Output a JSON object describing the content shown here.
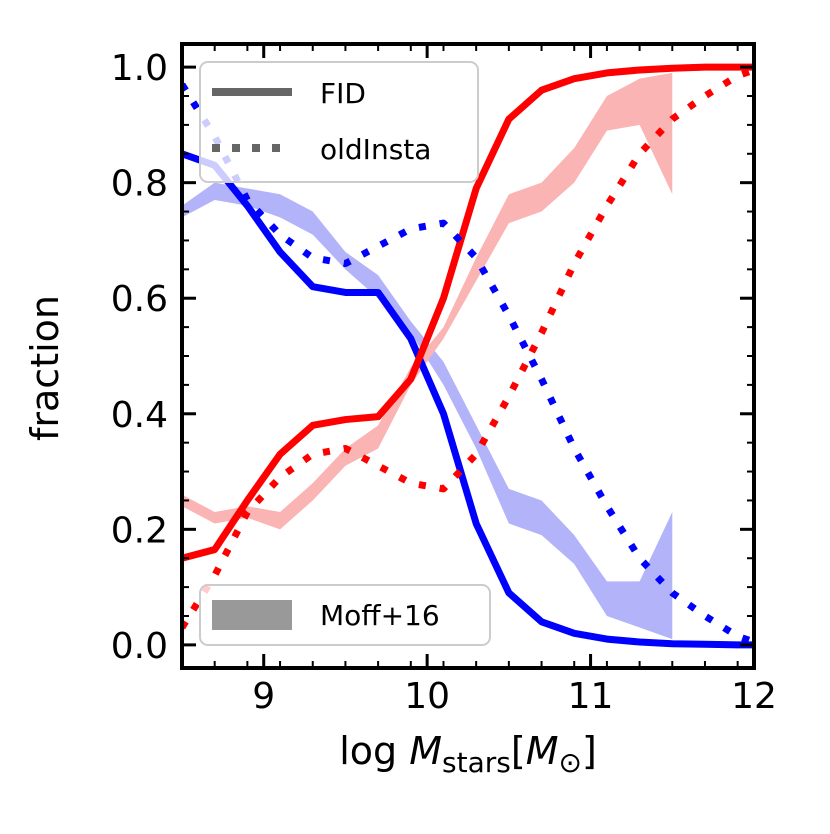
{
  "chart_data": {
    "type": "line",
    "xlabel": "log M_stars[M_⊙]",
    "xlabel_parts": {
      "prefix": "log ",
      "var": "M",
      "sub": "stars",
      "bracket_open": "[",
      "unit_var": "M",
      "unit_sub": "⊙",
      "bracket_close": "]"
    },
    "ylabel": "fraction",
    "xlim": [
      8.5,
      12.0
    ],
    "ylim": [
      -0.04,
      1.04
    ],
    "xticks": [
      9,
      10,
      11,
      12
    ],
    "xtick_labels": [
      "9",
      "10",
      "11",
      "12"
    ],
    "yticks": [
      0.0,
      0.2,
      0.4,
      0.6,
      0.8,
      1.0
    ],
    "ytick_labels": [
      "0.0",
      "0.2",
      "0.4",
      "0.6",
      "0.8",
      "1.0"
    ],
    "colors": {
      "blue": "#0000ff",
      "red": "#ff0000",
      "blue_band": "#b3b3fa",
      "red_band": "#fbb4b4",
      "legend_gray": "#666666",
      "legend_band": "#999999"
    },
    "legend": [
      {
        "label": "FID",
        "style": "solid"
      },
      {
        "label": "oldInsta",
        "style": "dotted"
      },
      {
        "label": "Moff+16",
        "style": "band"
      }
    ],
    "series": [
      {
        "name": "FID blue",
        "style": "solid",
        "color": "#0000ff",
        "x": [
          8.5,
          8.7,
          8.9,
          9.1,
          9.3,
          9.5,
          9.7,
          9.9,
          10.1,
          10.3,
          10.5,
          10.7,
          10.9,
          11.1,
          11.3,
          11.5,
          11.7,
          11.9,
          12.0
        ],
        "y": [
          0.85,
          0.83,
          0.76,
          0.68,
          0.62,
          0.61,
          0.61,
          0.53,
          0.4,
          0.21,
          0.09,
          0.04,
          0.02,
          0.01,
          0.005,
          0.002,
          0.001,
          0.0,
          0.0
        ]
      },
      {
        "name": "FID red",
        "style": "solid",
        "color": "#ff0000",
        "x": [
          8.5,
          8.7,
          8.9,
          9.1,
          9.3,
          9.5,
          9.7,
          9.9,
          10.1,
          10.3,
          10.5,
          10.7,
          10.9,
          11.1,
          11.3,
          11.5,
          11.7,
          11.9,
          12.0
        ],
        "y": [
          0.15,
          0.165,
          0.25,
          0.33,
          0.38,
          0.39,
          0.395,
          0.46,
          0.6,
          0.79,
          0.91,
          0.96,
          0.98,
          0.99,
          0.995,
          0.998,
          1.0,
          1.0,
          1.0
        ]
      },
      {
        "name": "oldInsta blue",
        "style": "dotted",
        "color": "#0000ff",
        "x": [
          8.5,
          8.7,
          8.9,
          9.1,
          9.3,
          9.5,
          9.7,
          9.9,
          10.1,
          10.3,
          10.5,
          10.7,
          10.9,
          11.1,
          11.3,
          11.5,
          11.7,
          11.9,
          12.0
        ],
        "y": [
          0.97,
          0.88,
          0.77,
          0.71,
          0.67,
          0.66,
          0.69,
          0.72,
          0.73,
          0.67,
          0.57,
          0.46,
          0.34,
          0.24,
          0.15,
          0.09,
          0.05,
          0.015,
          0.005
        ]
      },
      {
        "name": "oldInsta red",
        "style": "dotted",
        "color": "#ff0000",
        "x": [
          8.5,
          8.7,
          8.9,
          9.1,
          9.3,
          9.5,
          9.7,
          9.9,
          10.1,
          10.3,
          10.5,
          10.7,
          10.9,
          11.1,
          11.3,
          11.5,
          11.7,
          11.9,
          12.0
        ],
        "y": [
          0.03,
          0.12,
          0.23,
          0.29,
          0.33,
          0.34,
          0.31,
          0.28,
          0.27,
          0.33,
          0.43,
          0.54,
          0.66,
          0.76,
          0.85,
          0.91,
          0.95,
          0.985,
          0.995
        ]
      },
      {
        "name": "Moff+16 blue",
        "style": "band",
        "color": "#b3b3fa",
        "x": [
          8.5,
          8.7,
          8.9,
          9.1,
          9.3,
          9.5,
          9.7,
          9.9,
          10.1,
          10.3,
          10.5,
          10.7,
          10.9,
          11.1,
          11.3,
          11.5
        ],
        "lower": [
          0.74,
          0.77,
          0.76,
          0.74,
          0.71,
          0.65,
          0.6,
          0.54,
          0.45,
          0.34,
          0.21,
          0.19,
          0.14,
          0.05,
          0.03,
          0.01
        ],
        "upper": [
          0.76,
          0.8,
          0.79,
          0.78,
          0.75,
          0.68,
          0.64,
          0.56,
          0.49,
          0.38,
          0.27,
          0.25,
          0.19,
          0.11,
          0.11,
          0.23
        ]
      },
      {
        "name": "Moff+16 red",
        "style": "band",
        "color": "#fbb4b4",
        "x": [
          8.5,
          8.7,
          8.9,
          9.1,
          9.3,
          9.5,
          9.7,
          9.9,
          10.1,
          10.3,
          10.5,
          10.7,
          10.9,
          11.1,
          11.3,
          11.5
        ],
        "lower": [
          0.24,
          0.21,
          0.22,
          0.2,
          0.25,
          0.31,
          0.34,
          0.45,
          0.53,
          0.63,
          0.73,
          0.75,
          0.8,
          0.89,
          0.9,
          0.78
        ],
        "upper": [
          0.26,
          0.23,
          0.24,
          0.23,
          0.28,
          0.34,
          0.38,
          0.48,
          0.55,
          0.67,
          0.78,
          0.8,
          0.86,
          0.95,
          0.98,
          0.99
        ]
      }
    ]
  }
}
